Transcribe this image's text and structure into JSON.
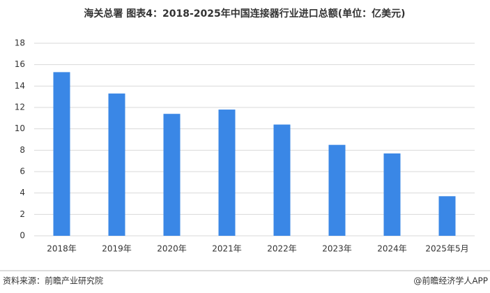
{
  "chart_data": {
    "type": "bar",
    "title": "海关总署 图表4：2018-2025年中国连接器行业进口总额(单位：亿美元)",
    "categories": [
      "2018年",
      "2019年",
      "2020年",
      "2021年",
      "2022年",
      "2023年",
      "2024年",
      "2025年5月"
    ],
    "values": [
      15.3,
      13.3,
      11.4,
      11.8,
      10.4,
      8.5,
      7.7,
      3.7
    ],
    "color": "#3a87e6",
    "ylim": [
      0,
      18
    ],
    "yticks": [
      0,
      2,
      4,
      6,
      8,
      10,
      12,
      14,
      16,
      18
    ],
    "grid": true
  },
  "footer": {
    "source": "资料来源：前瞻产业研究院",
    "brand": "@前瞻经济学人APP"
  }
}
